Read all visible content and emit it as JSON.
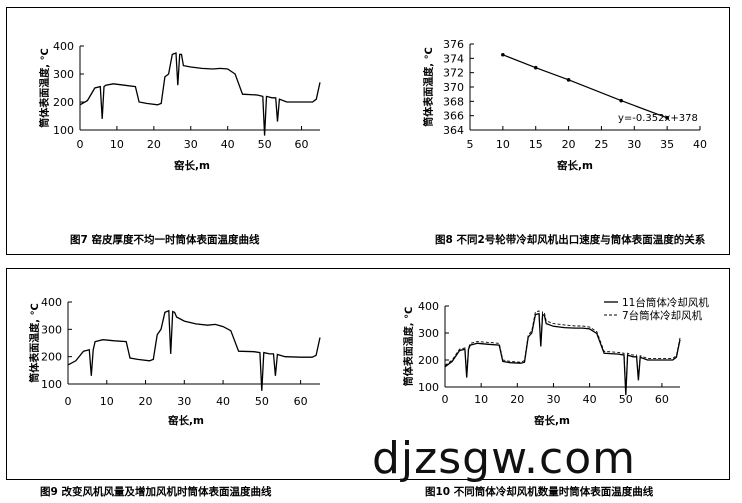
{
  "watermark": "djzsgw.com",
  "captions": [
    "图7  窑皮厚度不均一时筒体表面温度曲线",
    "图8  不同2号轮带冷却风机出口速度与筒体表面温度的关系",
    "图9  改变风机风量及增加风机时筒体表面温度曲线",
    "图10  不同筒体冷却风机数量时筒体表面温度曲线"
  ],
  "chart_data": [
    {
      "type": "line",
      "title": "",
      "xlabel": "窑长,m",
      "ylabel": "筒体表面温度, ℃",
      "xlim": [
        0,
        65
      ],
      "ylim": [
        100,
        400
      ],
      "xticks": [
        "0",
        "10",
        "20",
        "30",
        "40",
        "50",
        "60"
      ],
      "yticks": [
        "100",
        "200",
        "300",
        "400"
      ],
      "series": [
        {
          "x": [
            0,
            2,
            4,
            5.5,
            6,
            6.5,
            7,
            9,
            12,
            15,
            16,
            18,
            21,
            22,
            23,
            24,
            25,
            26,
            26.5,
            27,
            27.5,
            28,
            30,
            33,
            36,
            38,
            40,
            42,
            44,
            48,
            49.5,
            50,
            50.5,
            52,
            53,
            53.5,
            54,
            56,
            60,
            63,
            64,
            65
          ],
          "y": [
            190,
            205,
            250,
            255,
            140,
            255,
            260,
            265,
            260,
            255,
            200,
            195,
            190,
            195,
            290,
            300,
            370,
            375,
            260,
            370,
            370,
            330,
            325,
            320,
            318,
            320,
            318,
            300,
            228,
            225,
            220,
            80,
            220,
            215,
            215,
            130,
            210,
            200,
            200,
            200,
            210,
            270
          ]
        }
      ]
    },
    {
      "type": "line",
      "title": "",
      "xlabel": "窑长,m",
      "ylabel": "筒体表面温度, ℃",
      "xlim": [
        5,
        40
      ],
      "ylim": [
        364,
        376
      ],
      "xticks": [
        "5",
        "10",
        "15",
        "20",
        "25",
        "30",
        "35",
        "40"
      ],
      "yticks": [
        "364",
        "366",
        "368",
        "370",
        "372",
        "374",
        "376"
      ],
      "annotation": "y=-0.352x+378",
      "series": [
        {
          "x": [
            10,
            15,
            20,
            28,
            35
          ],
          "y": [
            374.5,
            372.7,
            371,
            368.1,
            365.7
          ]
        }
      ]
    },
    {
      "type": "line",
      "title": "",
      "xlabel": "窑长,m",
      "ylabel": "筒体表面温度, ℃",
      "xlim": [
        0,
        65
      ],
      "ylim": [
        100,
        400
      ],
      "xticks": [
        "0",
        "10",
        "20",
        "30",
        "40",
        "50",
        "60"
      ],
      "yticks": [
        "100",
        "200",
        "300",
        "400"
      ],
      "series": [
        {
          "x": [
            0,
            2,
            4,
            5.5,
            6,
            6.5,
            7,
            9,
            12,
            15,
            16,
            18,
            21,
            22,
            23,
            24,
            25,
            26,
            26.5,
            27,
            27.5,
            28,
            30,
            33,
            36,
            38,
            40,
            42,
            44,
            48,
            49.5,
            50,
            50.5,
            52,
            53,
            53.5,
            54,
            56,
            60,
            63,
            64,
            65
          ],
          "y": [
            170,
            185,
            220,
            225,
            130,
            225,
            255,
            262,
            258,
            255,
            195,
            190,
            185,
            190,
            280,
            300,
            362,
            368,
            210,
            365,
            362,
            345,
            330,
            320,
            315,
            318,
            310,
            295,
            220,
            218,
            215,
            75,
            215,
            210,
            210,
            130,
            208,
            200,
            198,
            198,
            205,
            270
          ]
        }
      ]
    },
    {
      "type": "line",
      "title": "",
      "xlabel": "窑长,m",
      "ylabel": "筒体表面温度, ℃",
      "xlim": [
        0,
        65
      ],
      "ylim": [
        100,
        400
      ],
      "xticks": [
        "0",
        "10",
        "20",
        "30",
        "40",
        "50",
        "60"
      ],
      "yticks": [
        "100",
        "200",
        "300",
        "400"
      ],
      "legend": {
        "placement": "top-right"
      },
      "series": [
        {
          "name": "11台筒体冷却风机",
          "x": [
            0,
            2,
            4,
            5.5,
            6,
            6.5,
            7,
            9,
            12,
            15,
            16,
            18,
            21,
            22,
            23,
            24,
            25,
            26,
            26.5,
            27,
            27.5,
            28,
            30,
            33,
            36,
            38,
            40,
            42,
            44,
            48,
            49.5,
            50,
            50.5,
            52,
            53,
            53.5,
            54,
            56,
            60,
            63,
            64,
            65
          ],
          "y": [
            175,
            195,
            235,
            240,
            135,
            240,
            255,
            262,
            258,
            255,
            195,
            190,
            188,
            192,
            285,
            300,
            368,
            372,
            250,
            368,
            365,
            335,
            325,
            320,
            318,
            318,
            315,
            298,
            225,
            222,
            218,
            70,
            218,
            212,
            212,
            125,
            210,
            200,
            200,
            200,
            210,
            275
          ]
        },
        {
          "name": "7台筒体冷却风机",
          "x": [
            0,
            2,
            4,
            5.5,
            6,
            6.5,
            7,
            9,
            12,
            15,
            16,
            18,
            21,
            22,
            23,
            24,
            25,
            26,
            26.5,
            27,
            27.5,
            28,
            30,
            33,
            36,
            38,
            40,
            42,
            44,
            48,
            49.5,
            50,
            50.5,
            52,
            53,
            53.5,
            54,
            56,
            60,
            63,
            64,
            65
          ],
          "y": [
            180,
            200,
            240,
            245,
            140,
            245,
            262,
            268,
            265,
            262,
            200,
            195,
            192,
            198,
            292,
            308,
            378,
            382,
            258,
            378,
            375,
            345,
            335,
            330,
            326,
            326,
            322,
            305,
            232,
            228,
            225,
            78,
            225,
            218,
            218,
            132,
            216,
            206,
            206,
            206,
            216,
            282
          ]
        }
      ]
    }
  ]
}
